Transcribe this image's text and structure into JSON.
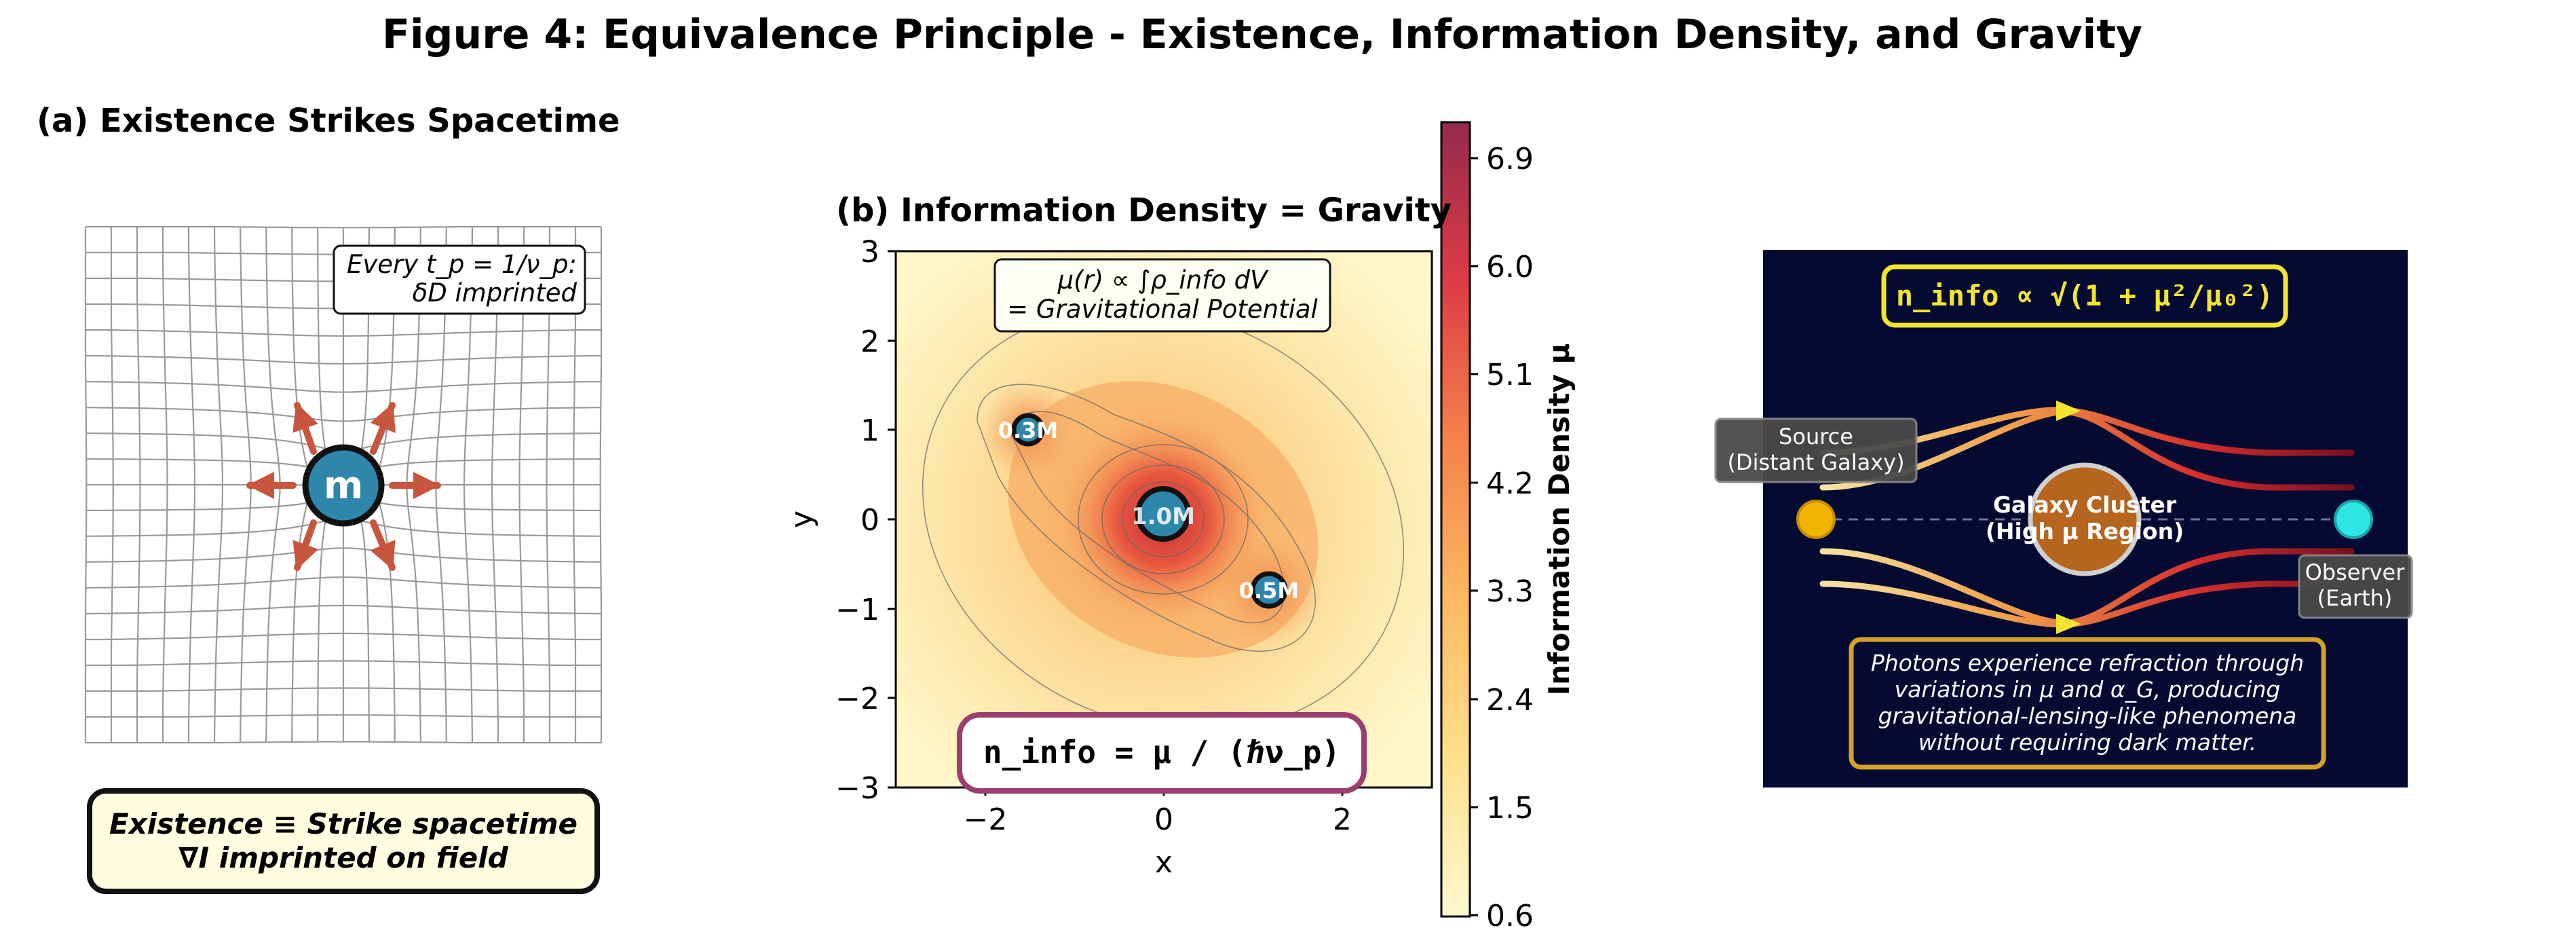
{
  "figure_title": "Figure 4: Equivalence Principle - Existence, Information Density, and Gravity",
  "panel_a": {
    "title": "(a) Existence Strikes Spacetime",
    "mass_label": "m",
    "note_line1": "Every t_p = 1/ν_p:",
    "note_line2": "δD imprinted",
    "caption_line1": "Existence ≡ Strike spacetime",
    "caption_line2": "∇I imprinted on field",
    "colors": {
      "arrow": "#c8553d",
      "mass": "#2e86ab",
      "grid": "#999999"
    }
  },
  "panel_b": {
    "title": "(b) Information Density = Gravity",
    "xlabel": "x",
    "ylabel": "y",
    "x_ticks": [
      "−2",
      "0",
      "2"
    ],
    "y_ticks": [
      "3",
      "2",
      "1",
      "0",
      "−1",
      "−2",
      "−3"
    ],
    "note_line1": "μ(r) ∝ ∫ρ_info dV",
    "note_line2": "= Gravitational Potential",
    "formula": "n_info = μ / (ℏν_p)",
    "mass_labels": [
      "1.0M",
      "0.3M",
      "0.5M"
    ],
    "colorbar_label": "Information Density μ",
    "colorbar_ticks": [
      "6.9",
      "6.0",
      "5.1",
      "4.2",
      "3.3",
      "2.4",
      "1.5",
      "0.6"
    ],
    "colors": {
      "formula_border": "#9b3d6e",
      "mass": "#2e86ab"
    }
  },
  "panel_c": {
    "formula": "n_info ∝ √(1 + μ²/μ₀²)",
    "source_line1": "Source",
    "source_line2": "(Distant Galaxy)",
    "cluster_line1": "Galaxy Cluster",
    "cluster_line2": "(High μ Region)",
    "observer_line1": "Observer",
    "observer_line2": "(Earth)",
    "note_line1": "Photons experience refraction through",
    "note_line2": "variations in μ and α_G, producing",
    "note_line3": "gravitational-lensing-like phenomena",
    "note_line4": "without requiring dark matter.",
    "colors": {
      "background": "#050a33",
      "formula": "#f2e530",
      "note_border": "#d4a12a",
      "observer": "#2ee6e6",
      "source": "#f0b400",
      "cluster": "#b5651d"
    }
  }
}
